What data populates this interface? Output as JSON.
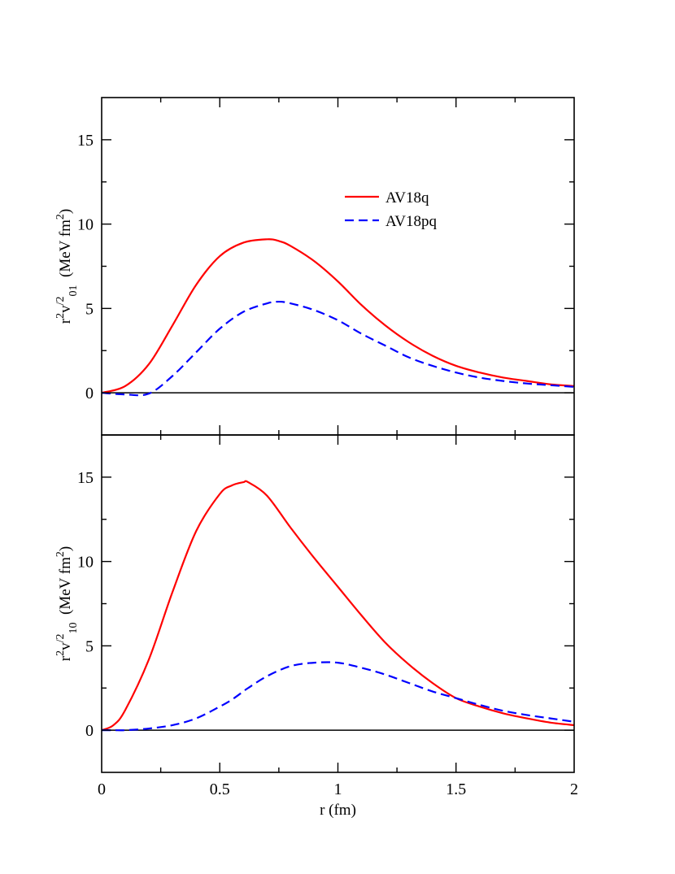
{
  "chart_data": [
    {
      "type": "line",
      "panel": "top",
      "ylabel": {
        "base": "r",
        "sup1": "2",
        "v": "v",
        "sup2": "/2",
        "sub": "01",
        "units": "(MeV fm",
        "units_sup": "2",
        "units_close": ")"
      },
      "xlim": [
        0,
        2
      ],
      "ylim": [
        -2.5,
        17.5
      ],
      "yticks": [
        0,
        5,
        10,
        15
      ],
      "ytick_labels": [
        "0",
        "5",
        "10",
        "15"
      ],
      "grid": false,
      "legend": {
        "placement": "top-right-center",
        "entries": [
          "AV18q",
          "AV18pq"
        ]
      },
      "x": [
        0,
        0.1,
        0.2,
        0.3,
        0.4,
        0.5,
        0.6,
        0.7,
        0.75,
        0.8,
        0.9,
        1.0,
        1.1,
        1.2,
        1.3,
        1.4,
        1.5,
        1.6,
        1.7,
        1.8,
        1.9,
        2.0
      ],
      "series": [
        {
          "name": "AV18q",
          "color": "#ff0000",
          "style": "solid",
          "values": [
            0,
            0.4,
            1.7,
            4.0,
            6.4,
            8.1,
            8.9,
            9.1,
            9.0,
            8.7,
            7.8,
            6.6,
            5.2,
            4.0,
            3.0,
            2.2,
            1.6,
            1.2,
            0.9,
            0.7,
            0.5,
            0.4
          ]
        },
        {
          "name": "AV18pq",
          "color": "#0000ff",
          "style": "dashed",
          "values": [
            0,
            -0.1,
            -0.05,
            1.0,
            2.4,
            3.8,
            4.8,
            5.3,
            5.4,
            5.3,
            4.9,
            4.3,
            3.5,
            2.8,
            2.1,
            1.6,
            1.2,
            0.9,
            0.7,
            0.55,
            0.45,
            0.35
          ]
        }
      ]
    },
    {
      "type": "line",
      "panel": "bottom",
      "xlabel": "r (fm)",
      "ylabel": {
        "base": "r",
        "sup1": "2",
        "v": "v",
        "sup2": "/2",
        "sub": "10",
        "units": "(MeV fm",
        "units_sup": "2",
        "units_close": ")"
      },
      "xlim": [
        0,
        2
      ],
      "ylim": [
        -2.5,
        17.5
      ],
      "xticks": [
        0,
        0.5,
        1,
        1.5,
        2
      ],
      "xtick_labels": [
        "0",
        "0.5",
        "1",
        "1.5",
        "2"
      ],
      "yticks": [
        0,
        5,
        10,
        15
      ],
      "ytick_labels": [
        "0",
        "5",
        "10",
        "15"
      ],
      "grid": false,
      "x": [
        0,
        0.05,
        0.1,
        0.2,
        0.3,
        0.4,
        0.5,
        0.55,
        0.6,
        0.62,
        0.7,
        0.8,
        0.9,
        1.0,
        1.1,
        1.2,
        1.3,
        1.4,
        1.5,
        1.6,
        1.7,
        1.8,
        1.9,
        2.0
      ],
      "series": [
        {
          "name": "AV18q",
          "color": "#ff0000",
          "style": "solid",
          "values": [
            0,
            0.3,
            1.2,
            4.2,
            8.2,
            11.8,
            14.0,
            14.5,
            14.7,
            14.7,
            13.9,
            12.0,
            10.2,
            8.5,
            6.8,
            5.2,
            3.9,
            2.8,
            1.9,
            1.4,
            1.0,
            0.7,
            0.45,
            0.3
          ]
        },
        {
          "name": "AV18pq",
          "color": "#0000ff",
          "style": "dashed",
          "values": [
            0,
            0.0,
            0.0,
            0.1,
            0.3,
            0.7,
            1.4,
            1.8,
            2.3,
            2.5,
            3.2,
            3.8,
            4.0,
            4.0,
            3.7,
            3.3,
            2.8,
            2.3,
            1.9,
            1.5,
            1.15,
            0.9,
            0.7,
            0.5
          ]
        }
      ]
    }
  ]
}
